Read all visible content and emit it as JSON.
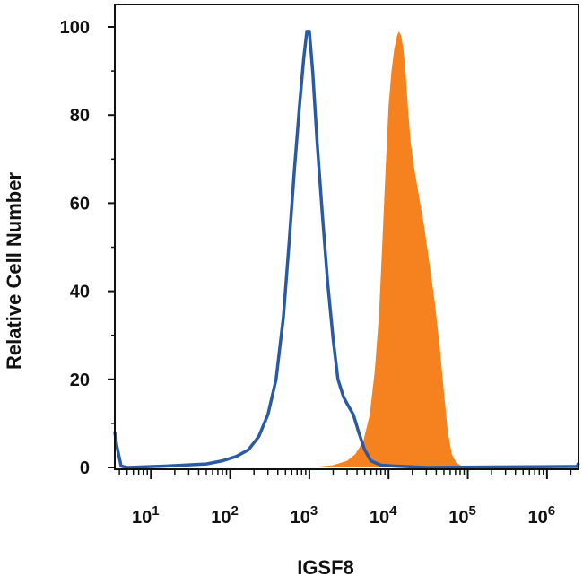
{
  "chart_data": {
    "type": "area",
    "title": "",
    "xlabel": "IGSF8",
    "ylabel": "Relative Cell Number",
    "x_scale": "log",
    "xlim": [
      3.5,
      2500000
    ],
    "ylim": [
      0,
      100
    ],
    "grid": false,
    "legend": "none",
    "y_ticks": [
      0,
      20,
      40,
      60,
      80,
      100
    ],
    "x_ticks": [
      {
        "value": 10,
        "base": "10",
        "exp": "1"
      },
      {
        "value": 100,
        "base": "10",
        "exp": "2"
      },
      {
        "value": 1000,
        "base": "10",
        "exp": "3"
      },
      {
        "value": 10000,
        "base": "10",
        "exp": "4"
      },
      {
        "value": 100000,
        "base": "10",
        "exp": "5"
      },
      {
        "value": 1000000,
        "base": "10",
        "exp": "6"
      }
    ],
    "series": [
      {
        "style": "filled",
        "color": "#f5821f",
        "x": [
          3.5,
          1000,
          2000,
          3000,
          3800,
          4800,
          5800,
          6700,
          7600,
          8400,
          9200,
          10000,
          10900,
          11800,
          12800,
          13500,
          14400,
          15400,
          16500,
          17500,
          19000,
          21000,
          24000,
          28000,
          33000,
          38000,
          44000,
          50000,
          56000,
          63000,
          72000,
          85000,
          105000,
          130000,
          2500000
        ],
        "y": [
          0,
          0,
          0.5,
          1.5,
          3,
          6,
          12,
          22,
          35,
          52,
          68,
          82,
          90,
          95,
          98,
          99,
          98,
          95,
          89,
          82,
          74,
          68,
          62,
          55,
          46,
          38,
          28,
          17,
          8,
          3,
          1,
          0.3,
          0,
          0,
          0
        ]
      },
      {
        "style": "outline",
        "color": "#2a5aa6",
        "x": [
          3.5,
          3.7,
          4.2,
          5,
          15,
          50,
          80,
          120,
          170,
          230,
          300,
          380,
          470,
          560,
          650,
          750,
          850,
          930,
          1000,
          1100,
          1250,
          1450,
          1700,
          2000,
          2300,
          2700,
          3100,
          3600,
          4200,
          5000,
          6000,
          8000,
          12000,
          30000,
          200000,
          2400000,
          2500000
        ],
        "y": [
          8,
          5,
          0.3,
          0,
          0.3,
          0.8,
          1.5,
          2.5,
          4,
          7,
          12,
          20,
          34,
          52,
          68,
          82,
          93,
          99,
          99,
          90,
          74,
          58,
          42,
          29,
          20,
          16,
          14,
          12,
          8,
          4,
          1.5,
          0.5,
          0.3,
          0,
          0.1,
          0.2,
          1
        ]
      }
    ]
  }
}
